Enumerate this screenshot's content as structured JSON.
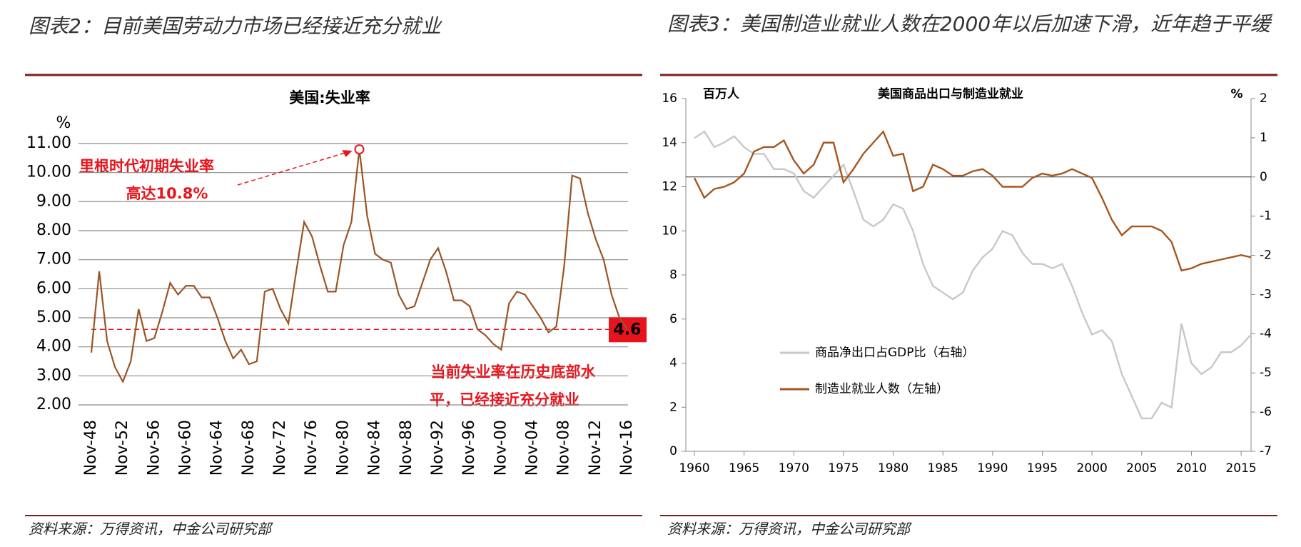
{
  "chart_data": [
    {
      "type": "line",
      "heading": "图表2：目前美国劳动力市场已经接近充分就业",
      "title": "美国:失业率",
      "y_unit": "%",
      "source": "资料来源：万得资讯，中金公司研究部",
      "color": "#9c5424",
      "grid": true,
      "categories": [
        "Nov-48",
        null,
        null,
        null,
        "Nov-52",
        null,
        null,
        null,
        "Nov-56",
        null,
        null,
        null,
        "Nov-60",
        null,
        null,
        null,
        "Nov-64",
        null,
        null,
        null,
        "Nov-68",
        null,
        null,
        null,
        "Nov-72",
        null,
        null,
        null,
        "Nov-76",
        null,
        null,
        null,
        "Nov-80",
        null,
        null,
        null,
        "Nov-84",
        null,
        null,
        null,
        "Nov-88",
        null,
        null,
        null,
        "Nov-92",
        null,
        null,
        null,
        "Nov-96",
        null,
        null,
        null,
        "Nov-00",
        null,
        null,
        null,
        "Nov-04",
        null,
        null,
        null,
        "Nov-08",
        null,
        null,
        null,
        "Nov-12",
        null,
        null,
        null,
        "Nov-16"
      ],
      "values": [
        3.8,
        6.6,
        4.2,
        3.3,
        2.8,
        3.5,
        5.3,
        4.2,
        4.3,
        5.2,
        6.2,
        5.8,
        6.1,
        6.1,
        5.7,
        5.7,
        5.0,
        4.2,
        3.6,
        3.9,
        3.4,
        3.5,
        5.9,
        6.0,
        5.3,
        4.8,
        6.6,
        8.3,
        7.8,
        6.8,
        5.9,
        5.9,
        7.5,
        8.3,
        10.8,
        8.5,
        7.2,
        7.0,
        6.9,
        5.8,
        5.3,
        5.4,
        6.2,
        7.0,
        7.4,
        6.6,
        5.6,
        5.6,
        5.4,
        4.6,
        4.4,
        4.1,
        3.9,
        5.5,
        5.9,
        5.8,
        5.4,
        5.0,
        4.5,
        4.7,
        6.8,
        9.9,
        9.8,
        8.6,
        7.7,
        7.0,
        5.8,
        5.0,
        4.6
      ],
      "ylim": [
        2,
        11
      ],
      "yticks": [
        {
          "value": 2,
          "label": "2.00"
        },
        {
          "value": 3,
          "label": "3.00"
        },
        {
          "value": 4,
          "label": "4.00"
        },
        {
          "value": 5,
          "label": "5.00"
        },
        {
          "value": 6,
          "label": "6.00"
        },
        {
          "value": 7,
          "label": "7.00"
        },
        {
          "value": 8,
          "label": "8.00"
        },
        {
          "value": 9,
          "label": "9.00"
        },
        {
          "value": 10,
          "label": "10.00"
        },
        {
          "value": 11,
          "label": "11.00"
        }
      ],
      "reference_line": 4.6,
      "annotations": [
        "里根时代初期失业率",
        "高达10.8%",
        "当前失业率在历史底部水",
        "平，已经接近充分就业"
      ]
    },
    {
      "type": "line",
      "heading": "图表3：美国制造业就业人数在2000年以后加速下滑，近年趋于平缓",
      "title": "美国商品出口与制造业就业",
      "y_unit": "百万人",
      "y2_unit": "%",
      "source": "资料来源：万得资讯，中金公司研究部",
      "x": [
        1960,
        1961,
        1962,
        1963,
        1964,
        1965,
        1966,
        1967,
        1968,
        1969,
        1970,
        1971,
        1972,
        1973,
        1974,
        1975,
        1976,
        1977,
        1978,
        1979,
        1980,
        1981,
        1982,
        1983,
        1984,
        1985,
        1986,
        1987,
        1988,
        1989,
        1990,
        1991,
        1992,
        1993,
        1994,
        1995,
        1996,
        1997,
        1998,
        1999,
        2000,
        2001,
        2002,
        2003,
        2004,
        2005,
        2006,
        2007,
        2008,
        2009,
        2010,
        2011,
        2012,
        2013,
        2014,
        2015,
        2016
      ],
      "xlim": [
        1960,
        2016
      ],
      "xticks": [
        1960,
        1965,
        1970,
        1975,
        1980,
        1985,
        1990,
        1995,
        2000,
        2005,
        2010,
        2015
      ],
      "ylim": [
        0,
        16
      ],
      "yticks": [
        0,
        2,
        4,
        6,
        8,
        10,
        12,
        14,
        16
      ],
      "y2lim": [
        -7,
        2
      ],
      "y2ticks": [
        -7,
        -6,
        -5,
        -4,
        -3,
        -2,
        -1,
        0,
        1,
        2
      ],
      "series": [
        {
          "name": "商品净出口占GDP比（右轴）",
          "color": "#c8c8c8",
          "axis": "y2",
          "values": [
            0.99,
            1.16,
            0.76,
            0.88,
            1.04,
            0.76,
            0.59,
            0.59,
            0.2,
            0.2,
            0.09,
            -0.36,
            -0.53,
            -0.25,
            0.03,
            0.31,
            -0.36,
            -1.09,
            -1.26,
            -1.09,
            -0.7,
            -0.81,
            -1.38,
            -2.22,
            -2.78,
            -2.95,
            -3.12,
            -2.95,
            -2.39,
            -2.05,
            -1.83,
            -1.38,
            -1.49,
            -1.94,
            -2.22,
            -2.22,
            -2.33,
            -2.22,
            -2.78,
            -3.46,
            -4.02,
            -3.91,
            -4.19,
            -5.03,
            -5.59,
            -6.16,
            -6.16,
            -5.76,
            -5.88,
            -3.74,
            -4.75,
            -5.03,
            -4.86,
            -4.47,
            -4.47,
            -4.3,
            -4.02
          ]
        },
        {
          "name": "制造业就业人数（左轴）",
          "color": "#a5561f",
          "values": [
            12.4,
            11.5,
            11.9,
            12.0,
            12.2,
            12.6,
            13.6,
            13.8,
            13.8,
            14.1,
            13.2,
            12.6,
            13.0,
            14.0,
            14.0,
            12.2,
            12.8,
            13.5,
            14.0,
            14.5,
            13.4,
            13.5,
            11.8,
            12.0,
            13.0,
            12.8,
            12.5,
            12.5,
            12.7,
            12.8,
            12.5,
            12.0,
            12.0,
            12.0,
            12.4,
            12.6,
            12.5,
            12.6,
            12.8,
            12.6,
            12.4,
            11.5,
            10.5,
            9.8,
            10.2,
            10.2,
            10.2,
            10.0,
            9.5,
            8.2,
            8.3,
            8.5,
            8.6,
            8.7,
            8.8,
            8.9,
            8.8
          ]
        }
      ]
    }
  ]
}
